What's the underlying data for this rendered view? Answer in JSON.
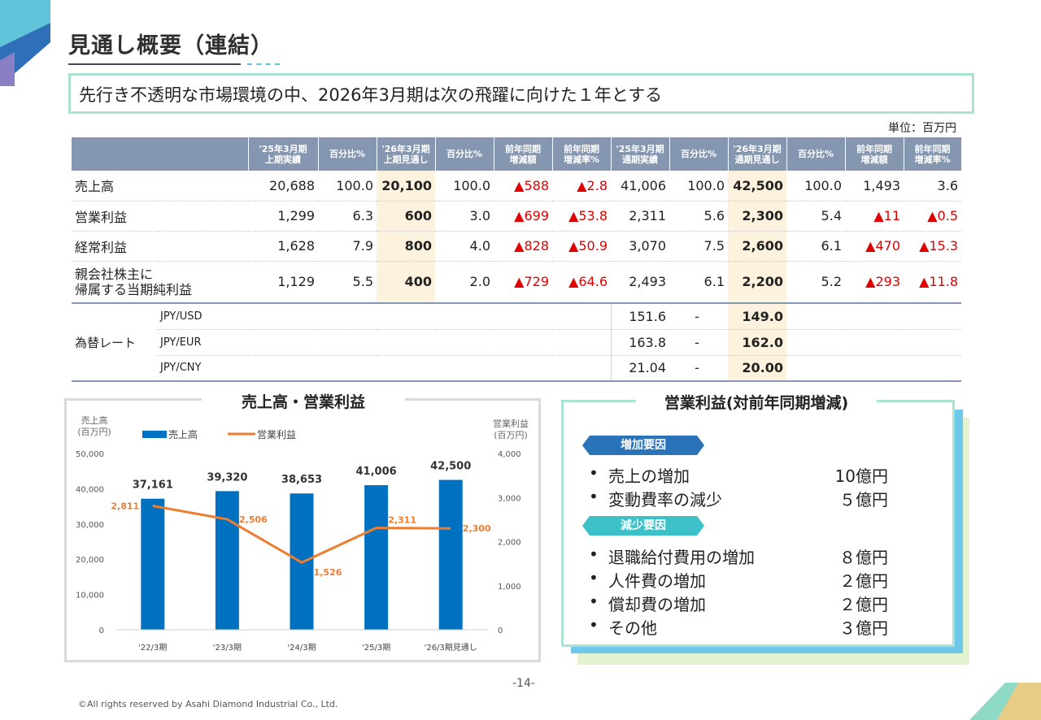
{
  "title": "見通し概要（連結）",
  "headline": "先行き不透明な市場環境の中、2026年3月期は次の飛躍に向けた１年とする",
  "unit": "単位：百万円",
  "table": {
    "headers": [
      "'25年3月期\n上期実績",
      "百分比%",
      "'26年3月期\n上期見通し",
      "百分比%",
      "前年同期\n増減額",
      "前年同期\n増減率%",
      "'25年3月期\n通期実績",
      "百分比%",
      "'26年3月期\n通期見通し",
      "百分比%",
      "前年同期\n増減額",
      "前年同期\n増減率%"
    ],
    "rows": [
      {
        "label": "売上高",
        "values": [
          "20,688",
          "100.0",
          "20,100",
          "100.0",
          "▲588",
          "▲2.8",
          "41,006",
          "100.0",
          "42,500",
          "100.0",
          "1,493",
          "3.6"
        ]
      },
      {
        "label": "営業利益",
        "values": [
          "1,299",
          "6.3",
          "600",
          "3.0",
          "▲699",
          "▲53.8",
          "2,311",
          "5.6",
          "2,300",
          "5.4",
          "▲11",
          "▲0.5"
        ]
      },
      {
        "label": "経常利益",
        "values": [
          "1,628",
          "7.9",
          "800",
          "4.0",
          "▲828",
          "▲50.9",
          "3,070",
          "7.5",
          "2,600",
          "6.1",
          "▲470",
          "▲15.3"
        ]
      },
      {
        "label": "親会社株主に\n帰属する当期純利益",
        "values": [
          "1,129",
          "5.5",
          "400",
          "2.0",
          "▲729",
          "▲64.6",
          "2,493",
          "6.1",
          "2,200",
          "5.2",
          "▲293",
          "▲11.8"
        ]
      }
    ],
    "fx_label": "為替レート",
    "fx": [
      {
        "currency": "JPY/USD",
        "actual": "151.6",
        "pct": "-",
        "forecast": "149.0"
      },
      {
        "currency": "JPY/EUR",
        "actual": "163.8",
        "pct": "-",
        "forecast": "162.0"
      },
      {
        "currency": "JPY/CNY",
        "actual": "21.04",
        "pct": "-",
        "forecast": "20.00"
      }
    ]
  },
  "chart_title": "売上高・営業利益",
  "chart_data": {
    "type": "bar",
    "categories": [
      "'22/3期",
      "'23/3期",
      "'24/3期",
      "'25/3期",
      "'26/3期見通し"
    ],
    "series": [
      {
        "name": "売上高",
        "type": "bar",
        "axis": "left",
        "values": [
          37161,
          39320,
          38653,
          41006,
          42500
        ],
        "labels": [
          "37,161",
          "39,320",
          "38,653",
          "41,006",
          "42,500"
        ],
        "color": "#0070c0"
      },
      {
        "name": "営業利益",
        "type": "line",
        "axis": "right",
        "values": [
          2811,
          2506,
          1526,
          2311,
          2300
        ],
        "labels": [
          "2,811",
          "2,506",
          "1,526",
          "2,311",
          "2,300"
        ],
        "color": "#ed7d31"
      }
    ],
    "ylabel_left": "売上高\n(百万円)",
    "ylabel_right": "営業利益\n(百万円)",
    "ylim_left": [
      0,
      50000
    ],
    "ylim_right": [
      0,
      4000
    ],
    "yticks_left": [
      "0",
      "10,000",
      "20,000",
      "30,000",
      "40,000",
      "50,000"
    ],
    "yticks_right": [
      "0",
      "1,000",
      "2,000",
      "3,000",
      "4,000"
    ],
    "legend": "top-left",
    "grid": false
  },
  "factors": {
    "title": "営業利益(対前年同期増減)",
    "increase_label": "増加要因",
    "increase": [
      {
        "item": "売上の増加",
        "amount": "10億円"
      },
      {
        "item": "変動費率の減少",
        "amount": "５億円"
      }
    ],
    "decrease_label": "減少要因",
    "decrease": [
      {
        "item": "退職給付費用の増加",
        "amount": "８億円"
      },
      {
        "item": "人件費の増加",
        "amount": "２億円"
      },
      {
        "item": "償却費の増加",
        "amount": "２億円"
      },
      {
        "item": "その他",
        "amount": "３億円"
      }
    ],
    "bullet": "•"
  },
  "page_number": "-14-",
  "copyright": "©All rights reserved by Asahi Diamond Industrial Co., Ltd.",
  "colors": {
    "header": "#8496b0",
    "highlight": "#fdf2dd",
    "negative": "#e00000",
    "bar": "#0070c0",
    "line": "#ed7d31"
  }
}
